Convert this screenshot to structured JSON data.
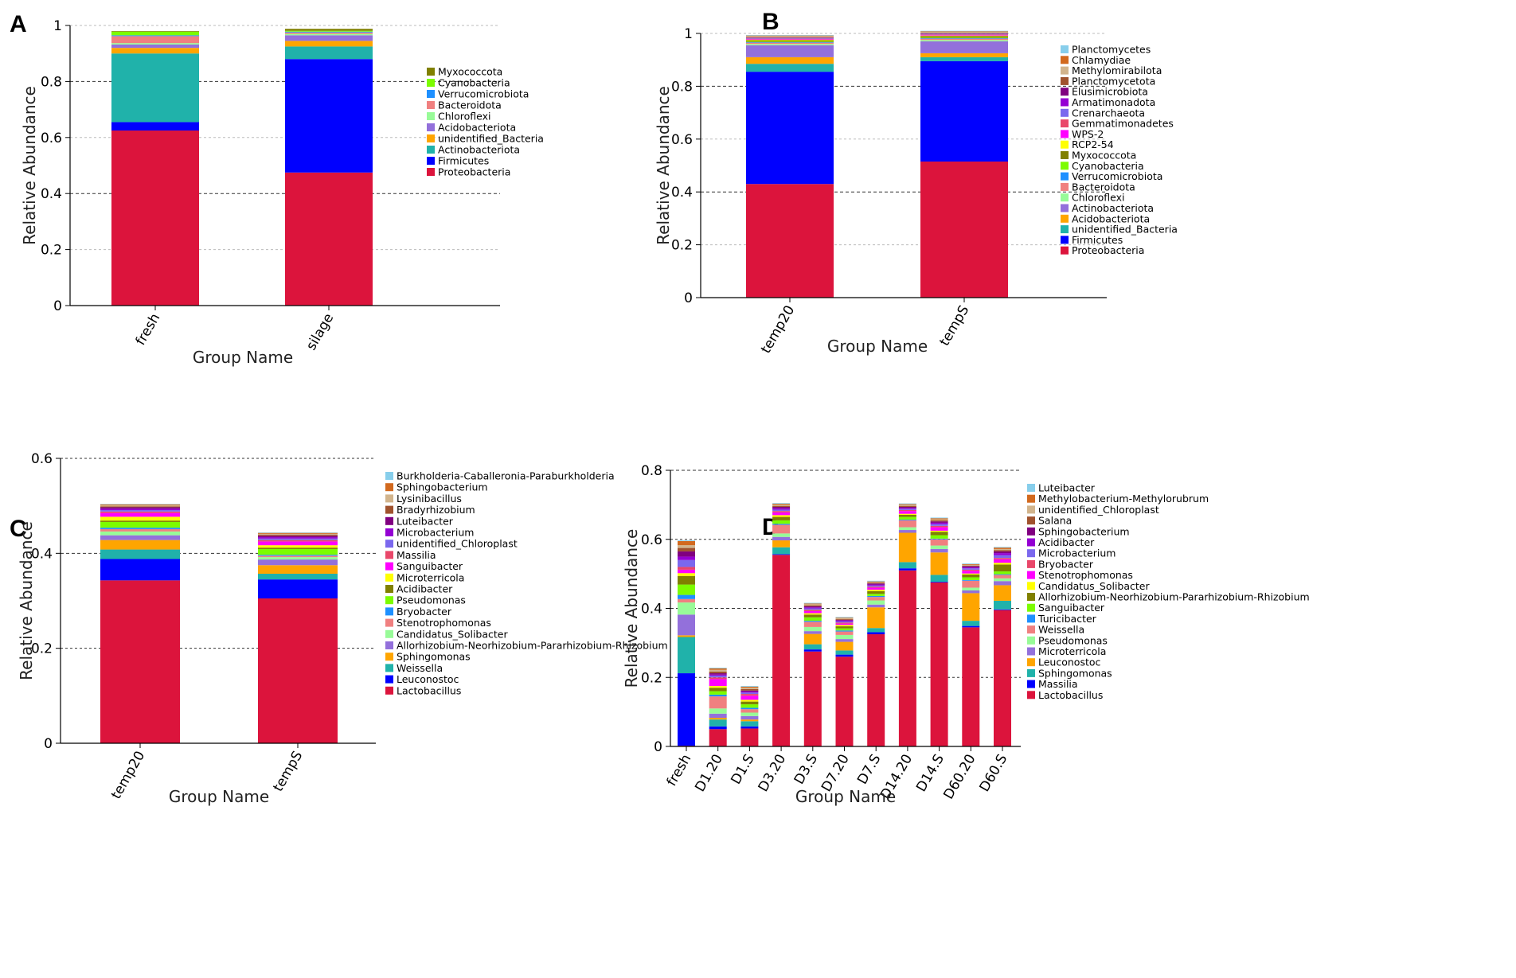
{
  "chart_data": [
    {
      "panel": "A",
      "type": "bar",
      "stacked": true,
      "ylabel": "Relative Abundance",
      "xlabel": "Group Name",
      "ylim": [
        0,
        1
      ],
      "yticks": [
        "0",
        "0.2",
        "0.4",
        "0.6",
        "0.8",
        "1"
      ],
      "categories": [
        "fresh",
        "silage"
      ],
      "series": [
        {
          "name": "Proteobacteria",
          "color": "#DC143C",
          "values": [
            0.625,
            0.475
          ]
        },
        {
          "name": "Firmicutes",
          "color": "#0000FF",
          "values": [
            0.03,
            0.405
          ]
        },
        {
          "name": "Actinobacteriota",
          "color": "#20B2AA",
          "values": [
            0.245,
            0.045
          ]
        },
        {
          "name": "unidentified_Bacteria",
          "color": "#FFA500",
          "values": [
            0.02,
            0.02
          ]
        },
        {
          "name": "Acidobacteriota",
          "color": "#9370DB",
          "values": [
            0.012,
            0.02
          ]
        },
        {
          "name": "Chloroflexi",
          "color": "#98FB98",
          "values": [
            0.005,
            0.005
          ]
        },
        {
          "name": "Bacteroidota",
          "color": "#F08080",
          "values": [
            0.025,
            0.005
          ]
        },
        {
          "name": "Verrucomicrobiota",
          "color": "#1E90FF",
          "values": [
            0.003,
            0.003
          ]
        },
        {
          "name": "Cyanobacteria",
          "color": "#7CFC00",
          "values": [
            0.013,
            0.003
          ]
        },
        {
          "name": "Myxococcota",
          "color": "#808000",
          "values": [
            0.002,
            0.007
          ]
        }
      ]
    },
    {
      "panel": "B",
      "type": "bar",
      "stacked": true,
      "ylabel": "Relative Abundance",
      "xlabel": "Group Name",
      "ylim": [
        0,
        1
      ],
      "yticks": [
        "0",
        "0.2",
        "0.4",
        "0.6",
        "0.8",
        "1"
      ],
      "categories": [
        "temp20",
        "tempS"
      ],
      "series": [
        {
          "name": "Proteobacteria",
          "color": "#DC143C",
          "values": [
            0.43,
            0.515
          ]
        },
        {
          "name": "Firmicutes",
          "color": "#0000FF",
          "values": [
            0.425,
            0.38
          ]
        },
        {
          "name": "unidentified_Bacteria",
          "color": "#20B2AA",
          "values": [
            0.03,
            0.015
          ]
        },
        {
          "name": "Acidobacteriota",
          "color": "#FFA500",
          "values": [
            0.025,
            0.015
          ]
        },
        {
          "name": "Actinobacteriota",
          "color": "#9370DB",
          "values": [
            0.045,
            0.045
          ]
        },
        {
          "name": "Chloroflexi",
          "color": "#98FB98",
          "values": [
            0.005,
            0.005
          ]
        },
        {
          "name": "Bacteroidota",
          "color": "#F08080",
          "values": [
            0.005,
            0.005
          ]
        },
        {
          "name": "Verrucomicrobiota",
          "color": "#1E90FF",
          "values": [
            0.002,
            0.002
          ]
        },
        {
          "name": "Cyanobacteria",
          "color": "#7CFC00",
          "values": [
            0.002,
            0.002
          ]
        },
        {
          "name": "Myxococcota",
          "color": "#808000",
          "values": [
            0.005,
            0.006
          ]
        },
        {
          "name": "RCP2-54",
          "color": "#FFFF00",
          "values": [
            0.002,
            0.002
          ]
        },
        {
          "name": "WPS-2",
          "color": "#FF00FF",
          "values": [
            0.002,
            0.002
          ]
        },
        {
          "name": "Gemmatimonadetes",
          "color": "#E9476A",
          "values": [
            0.002,
            0.002
          ]
        },
        {
          "name": "Crenarchaeota",
          "color": "#7B68EE",
          "values": [
            0.002,
            0.002
          ]
        },
        {
          "name": "Armatimonadota",
          "color": "#9400D3",
          "values": [
            0.001,
            0.001
          ]
        },
        {
          "name": "Elusimicrobiota",
          "color": "#800080",
          "values": [
            0.001,
            0.001
          ]
        },
        {
          "name": "Planctomycetota",
          "color": "#A0522D",
          "values": [
            0.002,
            0.002
          ]
        },
        {
          "name": "Methylomirabilota",
          "color": "#D2B48C",
          "values": [
            0.004,
            0.004
          ]
        },
        {
          "name": "Chlamydiae",
          "color": "#D2691E",
          "values": [
            0.002,
            0.002
          ]
        },
        {
          "name": "Planctomycetes",
          "color": "#87CEEB",
          "values": [
            0.002,
            0.002
          ]
        }
      ]
    },
    {
      "panel": "C",
      "type": "bar",
      "stacked": true,
      "ylabel": "Relative Abundance",
      "xlabel": "Group Name",
      "ylim": [
        0,
        0.6
      ],
      "yticks": [
        "0",
        "0.2",
        "0.4",
        "0.6"
      ],
      "categories": [
        "temp20",
        "tempS"
      ],
      "series": [
        {
          "name": "Lactobacillus",
          "color": "#DC143C",
          "values": [
            0.343,
            0.305
          ]
        },
        {
          "name": "Leuconostoc",
          "color": "#0000FF",
          "values": [
            0.045,
            0.04
          ]
        },
        {
          "name": "Weissella",
          "color": "#20B2AA",
          "values": [
            0.02,
            0.012
          ]
        },
        {
          "name": "Sphingomonas",
          "color": "#FFA500",
          "values": [
            0.02,
            0.018
          ]
        },
        {
          "name": "Allorhizobium-Neorhizobium-Pararhizobium-Rhizobium",
          "color": "#9370DB",
          "values": [
            0.01,
            0.012
          ]
        },
        {
          "name": "Candidatus_Solibacter",
          "color": "#98FB98",
          "values": [
            0.008,
            0.005
          ]
        },
        {
          "name": "Stenotrophomonas",
          "color": "#F08080",
          "values": [
            0.005,
            0.003
          ]
        },
        {
          "name": "Bryobacter",
          "color": "#1E90FF",
          "values": [
            0.003,
            0.002
          ]
        },
        {
          "name": "Pseudomonas",
          "color": "#7CFC00",
          "values": [
            0.012,
            0.012
          ]
        },
        {
          "name": "Acidibacter",
          "color": "#808000",
          "values": [
            0.003,
            0.003
          ]
        },
        {
          "name": "Microterricola",
          "color": "#FFFF00",
          "values": [
            0.008,
            0.005
          ]
        },
        {
          "name": "Sanguibacter",
          "color": "#FF00FF",
          "values": [
            0.008,
            0.008
          ]
        },
        {
          "name": "Massilia",
          "color": "#E9476A",
          "values": [
            0.003,
            0.003
          ]
        },
        {
          "name": "unidentified_Chloroplast",
          "color": "#7B68EE",
          "values": [
            0.003,
            0.003
          ]
        },
        {
          "name": "Microbacterium",
          "color": "#9400D3",
          "values": [
            0.003,
            0.003
          ]
        },
        {
          "name": "Luteibacter",
          "color": "#800080",
          "values": [
            0.003,
            0.003
          ]
        },
        {
          "name": "Bradyrhizobium",
          "color": "#A0522D",
          "values": [
            0.002,
            0.002
          ]
        },
        {
          "name": "Lysinibacillus",
          "color": "#D2B48C",
          "values": [
            0.002,
            0.002
          ]
        },
        {
          "name": "Sphingobacterium",
          "color": "#D2691E",
          "values": [
            0.002,
            0.002
          ]
        },
        {
          "name": "Burkholderia-Caballeronia-Paraburkholderia",
          "color": "#87CEEB",
          "values": [
            0.001,
            0.001
          ]
        }
      ]
    },
    {
      "panel": "D",
      "type": "bar",
      "stacked": true,
      "ylabel": "Relative Abundance",
      "xlabel": "Group Name",
      "ylim": [
        0,
        0.8
      ],
      "yticks": [
        "0",
        "0.2",
        "0.4",
        "0.6",
        "0.8"
      ],
      "categories": [
        "fresh",
        "D1.20",
        "D1.S",
        "D3.20",
        "D3.S",
        "D7.20",
        "D7.S",
        "D14.20",
        "D14.S",
        "D60.20",
        "D60.S"
      ],
      "series": [
        {
          "name": "Lactobacillus",
          "color": "#DC143C",
          "values": [
            0.002,
            0.05,
            0.052,
            0.555,
            0.275,
            0.26,
            0.325,
            0.51,
            0.475,
            0.345,
            0.395
          ]
        },
        {
          "name": "Massilia",
          "color": "#0000FF",
          "values": [
            0.21,
            0.008,
            0.006,
            0.002,
            0.006,
            0.006,
            0.006,
            0.006,
            0.002,
            0.004,
            0.002
          ]
        },
        {
          "name": "Sphingomonas",
          "color": "#20B2AA",
          "values": [
            0.105,
            0.02,
            0.015,
            0.02,
            0.015,
            0.012,
            0.012,
            0.018,
            0.02,
            0.015,
            0.025
          ]
        },
        {
          "name": "Leuconostoc",
          "color": "#FFA500",
          "values": [
            0.005,
            0.005,
            0.005,
            0.02,
            0.03,
            0.025,
            0.06,
            0.085,
            0.065,
            0.08,
            0.045
          ]
        },
        {
          "name": "Microterricola",
          "color": "#9370DB",
          "values": [
            0.06,
            0.012,
            0.01,
            0.01,
            0.008,
            0.008,
            0.008,
            0.008,
            0.01,
            0.008,
            0.012
          ]
        },
        {
          "name": "Pseudomonas",
          "color": "#98FB98",
          "values": [
            0.035,
            0.015,
            0.01,
            0.01,
            0.012,
            0.012,
            0.012,
            0.008,
            0.01,
            0.008,
            0.008
          ]
        },
        {
          "name": "Weissella",
          "color": "#F08080",
          "values": [
            0.01,
            0.035,
            0.01,
            0.025,
            0.015,
            0.01,
            0.01,
            0.02,
            0.018,
            0.02,
            0.01
          ]
        },
        {
          "name": "Turicibacter",
          "color": "#1E90FF",
          "values": [
            0.012,
            0.005,
            0.004,
            0.003,
            0.003,
            0.003,
            0.003,
            0.002,
            0.002,
            0.002,
            0.002
          ]
        },
        {
          "name": "Sanguibacter",
          "color": "#7CFC00",
          "values": [
            0.03,
            0.01,
            0.01,
            0.01,
            0.01,
            0.006,
            0.006,
            0.008,
            0.01,
            0.008,
            0.008
          ]
        },
        {
          "name": "Allorhizobium-Neorhizobium-Pararhizobium-Rhizobium",
          "color": "#808000",
          "values": [
            0.025,
            0.01,
            0.008,
            0.01,
            0.008,
            0.006,
            0.008,
            0.006,
            0.01,
            0.008,
            0.02
          ]
        },
        {
          "name": "Candidatus_Solibacter",
          "color": "#FFFF00",
          "values": [
            0.008,
            0.005,
            0.005,
            0.005,
            0.004,
            0.004,
            0.004,
            0.003,
            0.003,
            0.003,
            0.005
          ]
        },
        {
          "name": "Stenotrophomonas",
          "color": "#FF00FF",
          "values": [
            0.01,
            0.02,
            0.012,
            0.008,
            0.006,
            0.004,
            0.006,
            0.008,
            0.01,
            0.008,
            0.01
          ]
        },
        {
          "name": "Bryobacter",
          "color": "#E9476A",
          "values": [
            0.008,
            0.005,
            0.005,
            0.004,
            0.004,
            0.003,
            0.003,
            0.003,
            0.004,
            0.003,
            0.004
          ]
        },
        {
          "name": "Microbacterium",
          "color": "#7B68EE",
          "values": [
            0.02,
            0.005,
            0.004,
            0.004,
            0.004,
            0.003,
            0.003,
            0.003,
            0.005,
            0.004,
            0.008
          ]
        },
        {
          "name": "Acidibacter",
          "color": "#9400D3",
          "values": [
            0.01,
            0.003,
            0.003,
            0.004,
            0.003,
            0.003,
            0.003,
            0.003,
            0.004,
            0.003,
            0.006
          ]
        },
        {
          "name": "Sphingobacterium",
          "color": "#800080",
          "values": [
            0.015,
            0.004,
            0.003,
            0.004,
            0.003,
            0.002,
            0.003,
            0.003,
            0.004,
            0.003,
            0.005
          ]
        },
        {
          "name": "Salana",
          "color": "#A0522D",
          "values": [
            0.01,
            0.005,
            0.004,
            0.003,
            0.003,
            0.002,
            0.002,
            0.003,
            0.003,
            0.002,
            0.004
          ]
        },
        {
          "name": "unidentified_Chloroplast",
          "color": "#D2B48C",
          "values": [
            0.008,
            0.005,
            0.004,
            0.003,
            0.003,
            0.002,
            0.002,
            0.003,
            0.003,
            0.002,
            0.003
          ]
        },
        {
          "name": "Methylobacterium-Methylorubrum",
          "color": "#D2691E",
          "values": [
            0.012,
            0.004,
            0.003,
            0.003,
            0.002,
            0.002,
            0.002,
            0.002,
            0.003,
            0.002,
            0.004
          ]
        },
        {
          "name": "Luteibacter",
          "color": "#87CEEB",
          "values": [
            0.002,
            0.002,
            0.002,
            0.002,
            0.002,
            0.002,
            0.002,
            0.002,
            0.002,
            0.002,
            0.002
          ]
        }
      ]
    }
  ]
}
